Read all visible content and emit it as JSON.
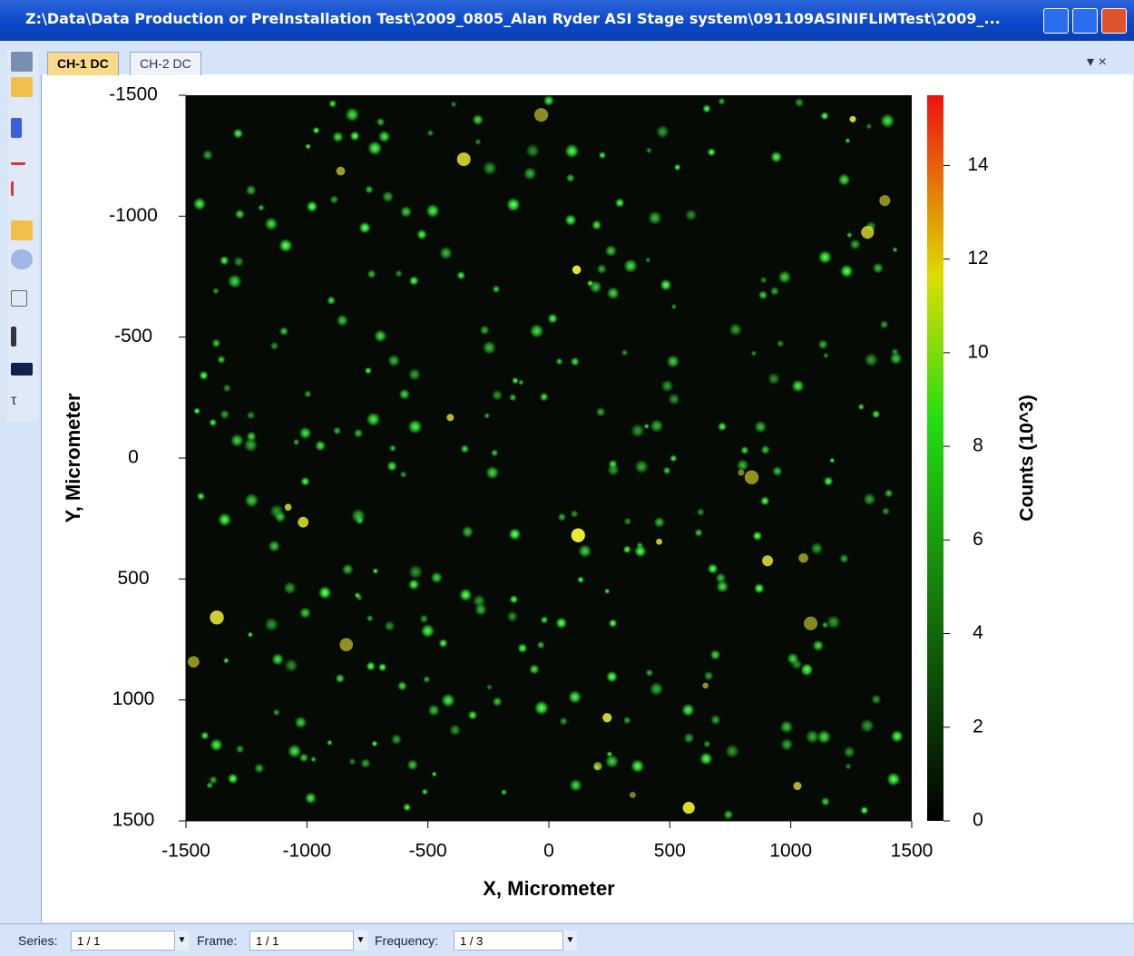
{
  "window": {
    "title": "Z:\\Data\\Data Production or PreInstallation Test\\2009_0805_Alan Ryder ASI Stage system\\091109ASINIFLIMTest\\2009_..."
  },
  "tabs": [
    "CH-1 DC",
    "CH-2 DC"
  ],
  "chart_data": {
    "type": "heatmap",
    "xlabel": "X, Micrometer",
    "ylabel": "Y, Micrometer",
    "xlim": [
      -1500,
      1500
    ],
    "xticks": [
      -1500,
      -1000,
      -500,
      0,
      500,
      1000,
      1500
    ],
    "ylim": [
      1500,
      -1500
    ],
    "yticks": [
      -1500,
      -1000,
      -500,
      0,
      500,
      1000,
      1500
    ],
    "colorbar": {
      "label": "Counts (10^3)",
      "lim": [
        0,
        15.5
      ],
      "ticks": [
        0,
        2,
        4,
        6,
        8,
        10,
        12,
        14
      ]
    }
  },
  "status": {
    "fields": [
      {
        "label": "Series:",
        "value": "1 / 1"
      },
      {
        "label": "Frame:",
        "value": "1 / 1"
      },
      {
        "label": "Frequency:",
        "value": "1 / 3"
      }
    ]
  }
}
